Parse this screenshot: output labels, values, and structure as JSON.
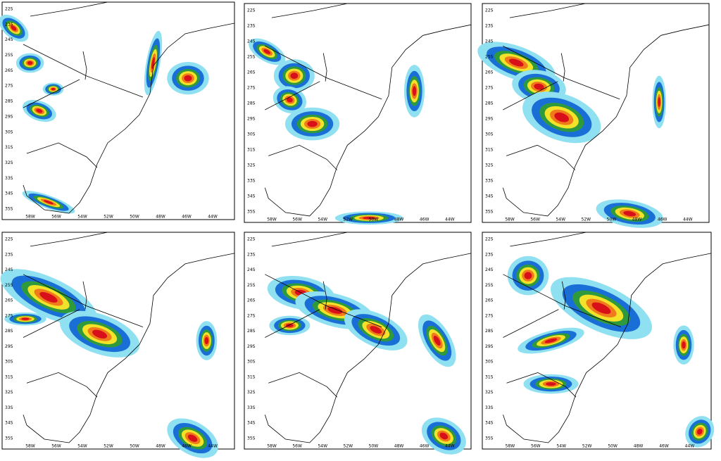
{
  "lat_labels": [
    "22S",
    "23S",
    "24S",
    "25S",
    "26S",
    "27S",
    "28S",
    "29S",
    "30S",
    "31S",
    "32S",
    "33S",
    "34S",
    "35S"
  ],
  "lon_labels": [
    "58W",
    "56W",
    "54W",
    "52W",
    "50W",
    "48W",
    "46W",
    "44W"
  ]
}
